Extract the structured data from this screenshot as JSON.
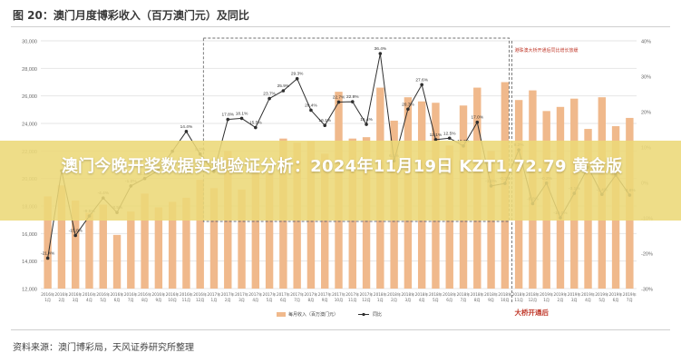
{
  "figure": {
    "title": "图 20：澳门月度博彩收入（百万澳门元）及同比",
    "source": "资料来源：澳门博彩局，天风证券研究所整理"
  },
  "banner": {
    "text": "澳门今晚开奖数据实地验证分析：2024年11月19日 KZT1.72.79 黄金版"
  },
  "chart_data": {
    "type": "bar",
    "x": [
      "2016年1月",
      "2016年2月",
      "2016年3月",
      "2016年4月",
      "2016年5月",
      "2016年6月",
      "2016年7月",
      "2016年8月",
      "2016年9月",
      "2016年10月",
      "2016年11月",
      "2016年12月",
      "2017年1月",
      "2017年2月",
      "2017年3月",
      "2017年4月",
      "2017年5月",
      "2017年6月",
      "2017年7月",
      "2017年8月",
      "2017年9月",
      "2017年10月",
      "2017年11月",
      "2017年12月",
      "2018年1月",
      "2018年2月",
      "2018年3月",
      "2018年4月",
      "2018年5月",
      "2018年6月",
      "2018年7月",
      "2018年8月",
      "2018年9月",
      "2018年10月",
      "2018年11月",
      "2018年12月",
      "2019年1月",
      "2019年2月",
      "2019年3月",
      "2019年4月",
      "2019年5月",
      "2019年6月",
      "2019年7月"
    ],
    "series": [
      {
        "name": "每月收入（百万澳门元）",
        "axis": "left",
        "kind": "bar",
        "values": [
          18700,
          19500,
          18400,
          17500,
          18100,
          15900,
          17600,
          18900,
          17900,
          18300,
          18600,
          19900,
          19300,
          22000,
          19200,
          20700,
          20400,
          22900,
          22600,
          22700,
          21800,
          26300,
          22900,
          23000,
          26600,
          24200,
          25900,
          25600,
          25500,
          22400,
          25300,
          26600,
          22000,
          27000,
          25700,
          26400,
          24900,
          25200,
          25800,
          23600,
          25900,
          23800,
          24400
        ]
      },
      {
        "name": "同比",
        "axis": "right",
        "kind": "line",
        "values": [
          -21.4,
          3.3,
          -15.0,
          -9.5,
          -4.4,
          -8.5,
          -1.0,
          1.1,
          3.4,
          8.8,
          14.4,
          8.0,
          3.1,
          17.8,
          18.1,
          15.5,
          23.7,
          25.9,
          29.3,
          20.4,
          16.1,
          22.7,
          22.8,
          16.4,
          36.4,
          6.1,
          20.7,
          27.6,
          12.1,
          12.5,
          10.3,
          17.0,
          -1.0,
          -0.3,
          9.2,
          -6.0,
          -0.2,
          -10.0,
          -3.1,
          4.3,
          -3.4,
          2.1,
          -3.6
        ]
      }
    ],
    "labels": [
      "-21.4%",
      "",
      "-15.0%",
      "-9.5%",
      "-4.4%",
      "-8.5%",
      "-1.0%",
      "1.1%",
      "3.4%",
      "",
      "14.4%",
      "8.0%",
      "3.1%",
      "17.8%",
      "18.1%",
      "15.5%",
      "23.7%",
      "25.9%",
      "29.3%",
      "20.4%",
      "16.1%",
      "22.7%",
      "22.8%",
      "16.4%",
      "36.4%",
      "6.1%",
      "20.7%",
      "27.6%",
      "12.1%",
      "12.5%",
      "10.3%",
      "17.0%",
      "-1.0%",
      "-0.3%",
      "9.2%",
      "-6.0%",
      "-0.2%",
      "-10.0%",
      "-3.1%",
      "4.3%",
      "-3.4%",
      "2.1%",
      "-3.6%"
    ],
    "ylim_left": [
      12000,
      30000
    ],
    "left_ticks": [
      "12,000",
      "14,000",
      "16,000",
      "18,000",
      "20,000",
      "22,000",
      "24,000",
      "26,000",
      "28,000",
      "30,000"
    ],
    "ylim_right": [
      -30,
      40
    ],
    "right_ticks": [
      "-30%",
      "-20%",
      "-10%",
      "0%",
      "10%",
      "20%",
      "30%",
      "40%"
    ],
    "legend": [
      "每月收入（百万澳门元）",
      "同比"
    ],
    "annotations": {
      "box_note": "港珠澳大桥开通后同比增长放缓",
      "bridge_label": "大桥开通后"
    },
    "colors": {
      "bar": "#f0b98c",
      "line": "#2f2f2f",
      "box": "#6f6f6f",
      "bridge": "#c0392b"
    },
    "grid": true
  }
}
